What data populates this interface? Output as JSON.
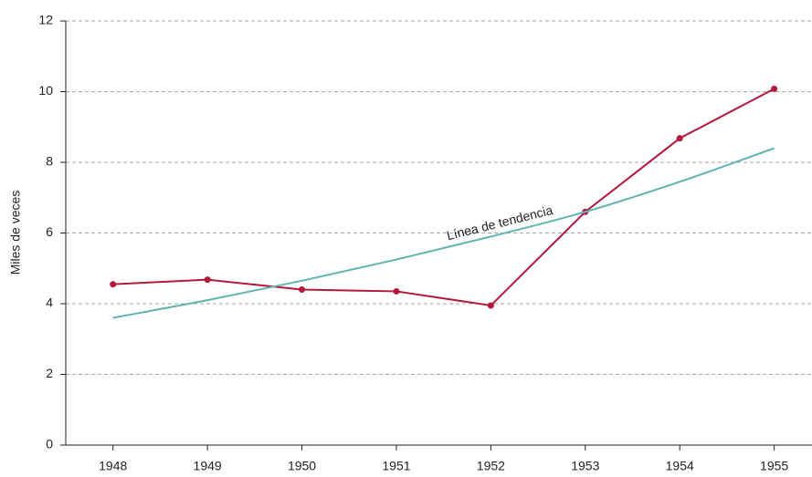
{
  "chart_data": {
    "type": "line",
    "y_label": "Miles de veces",
    "annotation": "Línea de tendencia",
    "x": [
      1948,
      1949,
      1950,
      1951,
      1952,
      1953,
      1954,
      1955
    ],
    "series": [
      {
        "color": "#b5173b",
        "markers": true,
        "values": [
          4.55,
          4.68,
          4.4,
          4.35,
          3.95,
          6.6,
          8.68,
          10.08
        ]
      },
      {
        "color": "#5fb3b5",
        "markers": false,
        "smooth": true,
        "values": [
          3.6,
          4.1,
          4.65,
          5.25,
          5.9,
          6.6,
          7.45,
          8.4
        ]
      }
    ],
    "xlim": [
      1947.5,
      1955.4
    ],
    "xticks": [
      1948,
      1949,
      1950,
      1951,
      1952,
      1953,
      1954,
      1955
    ],
    "ylim": [
      0,
      12
    ],
    "yticks": [
      0,
      2,
      4,
      6,
      8,
      10,
      12
    ],
    "grid": true
  }
}
